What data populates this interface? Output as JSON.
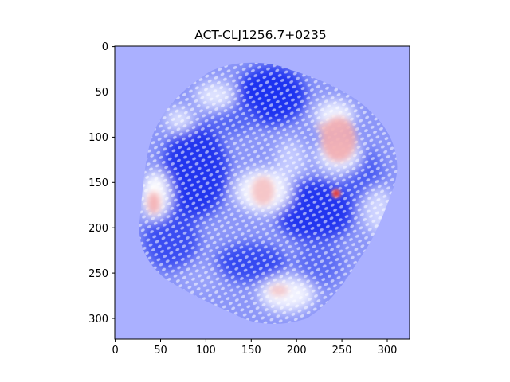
{
  "title": "ACT-CLJ1256.7+0235",
  "axes": {
    "x_ticks": [
      "0",
      "50",
      "100",
      "150",
      "200",
      "250",
      "300"
    ],
    "y_ticks": [
      "0",
      "50",
      "100",
      "150",
      "200",
      "250",
      "300"
    ],
    "x_range": [
      0,
      324
    ],
    "y_range": [
      0,
      324
    ],
    "y_inverted": true
  },
  "colors": {
    "background_fill": "#aab0ff",
    "strong_blue": "#1a2ef0",
    "mid_blue": "#6d78f5",
    "white": "#ffffff",
    "pink": "#f6b3b3",
    "red": "#e0141e"
  }
}
